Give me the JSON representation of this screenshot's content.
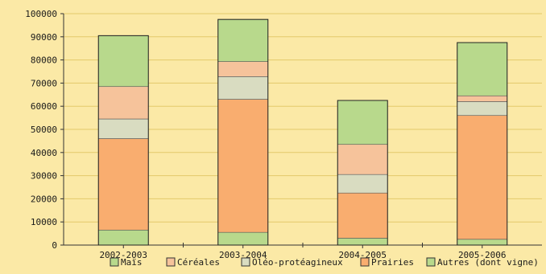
{
  "chart_data": {
    "type": "bar",
    "stacked": true,
    "categories": [
      "2002-2003",
      "2003-2004",
      "2004-2005",
      "2005-2006"
    ],
    "ylim": [
      0,
      100000
    ],
    "yticks": [
      0,
      10000,
      20000,
      30000,
      40000,
      50000,
      60000,
      70000,
      80000,
      90000,
      100000
    ],
    "ytick_labels": [
      "0",
      "10000",
      "20000",
      "30000",
      "40000",
      "50000",
      "60000",
      "70000",
      "80000",
      "90000",
      "100000"
    ],
    "grid": "horizontal",
    "legend_position": "bottom",
    "series": [
      {
        "name": "Maïs",
        "color": "#b8d98c",
        "values": [
          6500,
          5500,
          3000,
          2500
        ]
      },
      {
        "name": "Prairies",
        "color": "#f9ad6f",
        "values": [
          39500,
          57500,
          19500,
          53500
        ]
      },
      {
        "name": "Oléo-protéagineux",
        "color": "#d9dcc1",
        "values": [
          8500,
          9800,
          8000,
          6000
        ]
      },
      {
        "name": "Céréales",
        "color": "#f6c39b",
        "values": [
          14000,
          6500,
          13000,
          2500
        ]
      },
      {
        "name": "Autres (dont vigne)",
        "color": "#b8d98c",
        "values": [
          22000,
          18200,
          19000,
          23000
        ]
      }
    ],
    "legend": [
      {
        "label": "Maïs",
        "color": "#b8d98c"
      },
      {
        "label": "Céréales",
        "color": "#f6c39b"
      },
      {
        "label": "Oléo-protéagineux",
        "color": "#d9dcc1"
      },
      {
        "label": "Prairies",
        "color": "#f9ad6f"
      },
      {
        "label": "Autres (dont vigne)",
        "color": "#b8d98c"
      }
    ]
  }
}
